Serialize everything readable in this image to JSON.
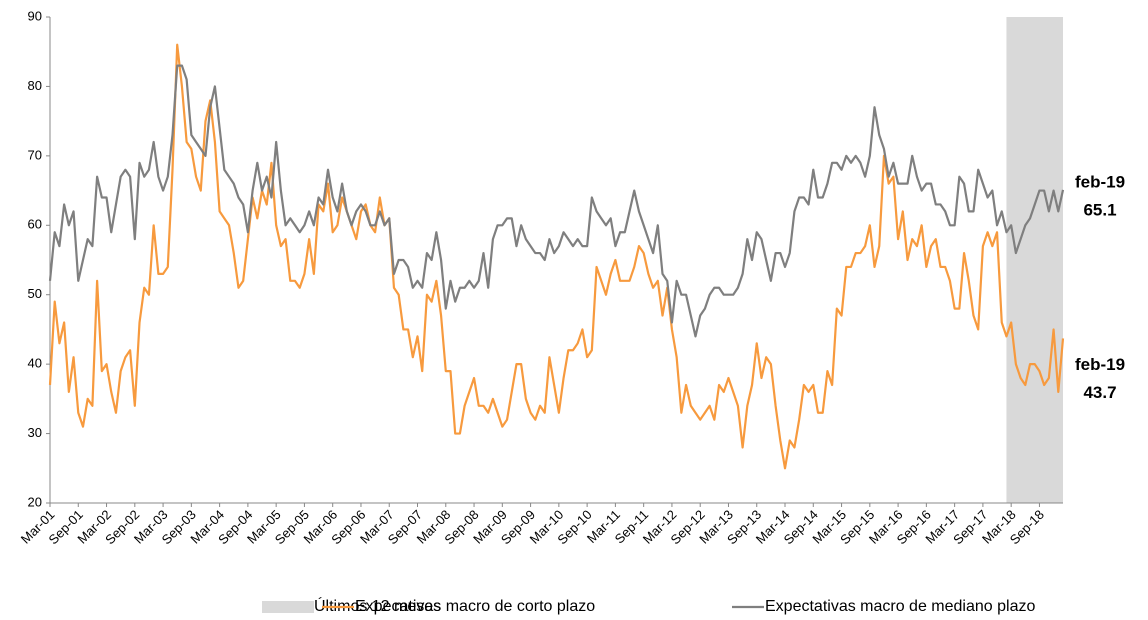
{
  "chart_data": {
    "type": "line",
    "categories": [
      "Mar-01",
      null,
      null,
      null,
      null,
      null,
      "Sep-01",
      null,
      null,
      null,
      null,
      null,
      "Mar-02",
      null,
      null,
      null,
      null,
      null,
      "Sep-02",
      null,
      null,
      null,
      null,
      null,
      "Mar-03",
      null,
      null,
      null,
      null,
      null,
      "Sep-03",
      null,
      null,
      null,
      null,
      null,
      "Mar-04",
      null,
      null,
      null,
      null,
      null,
      "Sep-04",
      null,
      null,
      null,
      null,
      null,
      "Mar-05",
      null,
      null,
      null,
      null,
      null,
      "Sep-05",
      null,
      null,
      null,
      null,
      null,
      "Mar-06",
      null,
      null,
      null,
      null,
      null,
      "Sep-06",
      null,
      null,
      null,
      null,
      null,
      "Mar-07",
      null,
      null,
      null,
      null,
      null,
      "Sep-07",
      null,
      null,
      null,
      null,
      null,
      "Mar-08",
      null,
      null,
      null,
      null,
      null,
      "Sep-08",
      null,
      null,
      null,
      null,
      null,
      "Mar-09",
      null,
      null,
      null,
      null,
      null,
      "Sep-09",
      null,
      null,
      null,
      null,
      null,
      "Mar-10",
      null,
      null,
      null,
      null,
      null,
      "Sep-10",
      null,
      null,
      null,
      null,
      null,
      "Mar-11",
      null,
      null,
      null,
      null,
      null,
      "Sep-11",
      null,
      null,
      null,
      null,
      null,
      "Mar-12",
      null,
      null,
      null,
      null,
      null,
      "Sep-12",
      null,
      null,
      null,
      null,
      null,
      "Mar-13",
      null,
      null,
      null,
      null,
      null,
      "Sep-13",
      null,
      null,
      null,
      null,
      null,
      "Mar-14",
      null,
      null,
      null,
      null,
      null,
      "Sep-14",
      null,
      null,
      null,
      null,
      null,
      "Mar-15",
      null,
      null,
      null,
      null,
      null,
      "Sep-15",
      null,
      null,
      null,
      null,
      null,
      "Mar-16",
      null,
      null,
      null,
      null,
      null,
      "Sep-16",
      null,
      null,
      null,
      null,
      null,
      "Mar-17",
      null,
      null,
      null,
      null,
      null,
      "Sep-17",
      null,
      null,
      null,
      null,
      null,
      "Mar-18",
      null,
      null,
      null,
      null,
      null,
      "Sep-18",
      null,
      null,
      null,
      null,
      null
    ],
    "series": [
      {
        "name": "Expecativas macro de corto plazo",
        "color": "#f79a3e",
        "end_label": "feb-19",
        "values": [
          37,
          49,
          43,
          46,
          36,
          41,
          33,
          31,
          35,
          34,
          52,
          39,
          40,
          36,
          33,
          39,
          41,
          42,
          34,
          46,
          51,
          50,
          60,
          53,
          53,
          54,
          68,
          86,
          80,
          72,
          71,
          67,
          65,
          75,
          78,
          72,
          62,
          61,
          60,
          56,
          51,
          52,
          58,
          64,
          61,
          65,
          63,
          69,
          60,
          57,
          58,
          52,
          52,
          51,
          53,
          58,
          53,
          63,
          62,
          66,
          59,
          60,
          64,
          62,
          60,
          58,
          62,
          63,
          60,
          59,
          64,
          60,
          61,
          51,
          50,
          45,
          45,
          41,
          44,
          39,
          50,
          49,
          52,
          47,
          39,
          39,
          30,
          30,
          34,
          36,
          38,
          34,
          34,
          33,
          35,
          33,
          31,
          32,
          36,
          40,
          40,
          35,
          33,
          32,
          34,
          33,
          41,
          37,
          33,
          38,
          42,
          42,
          43,
          45,
          41,
          42,
          54,
          52,
          50,
          53,
          55,
          52,
          52,
          52,
          54,
          57,
          56,
          53,
          51,
          52,
          47,
          51,
          45,
          41,
          33,
          37,
          34,
          33,
          32,
          33,
          34,
          32,
          37,
          36,
          38,
          36,
          34,
          28,
          34,
          37,
          43,
          38,
          41,
          40,
          34,
          29,
          25,
          29,
          28,
          32,
          37,
          36,
          37,
          33,
          33,
          39,
          37,
          48,
          47,
          54,
          54,
          56,
          56,
          57,
          60,
          54,
          57,
          70,
          66,
          67,
          58,
          62,
          55,
          58,
          57,
          60,
          54,
          57,
          58,
          54,
          54,
          52,
          48,
          48,
          56,
          52,
          47,
          45,
          57,
          59,
          57,
          59,
          46,
          44,
          46,
          40,
          38,
          37,
          40,
          40,
          39,
          37,
          38,
          45,
          36,
          43.7
        ]
      },
      {
        "name": "Expectativas macro de mediano plazo",
        "color": "#7f7f7f",
        "end_label": "feb-19",
        "values": [
          52,
          59,
          57,
          63,
          60,
          62,
          52,
          55,
          58,
          57,
          67,
          64,
          64,
          59,
          63,
          67,
          68,
          67,
          58,
          69,
          67,
          68,
          72,
          67,
          65,
          67,
          73,
          83,
          83,
          81,
          73,
          72,
          71,
          70,
          77,
          80,
          74,
          68,
          67,
          66,
          64,
          63,
          59,
          65,
          69,
          65,
          67,
          64,
          72,
          65,
          60,
          61,
          60,
          59,
          60,
          62,
          60,
          64,
          63,
          68,
          64,
          62,
          66,
          62,
          60,
          62,
          63,
          62,
          60,
          60,
          62,
          60,
          61,
          53,
          55,
          55,
          54,
          51,
          52,
          51,
          56,
          55,
          59,
          55,
          48,
          52,
          49,
          51,
          51,
          52,
          51,
          52,
          56,
          51,
          58,
          60,
          60,
          61,
          61,
          57,
          60,
          58,
          57,
          56,
          56,
          55,
          58,
          56,
          57,
          59,
          58,
          57,
          58,
          57,
          57,
          64,
          62,
          61,
          60,
          61,
          57,
          59,
          59,
          62,
          65,
          62,
          60,
          58,
          56,
          60,
          53,
          52,
          46,
          52,
          50,
          50,
          47,
          44,
          47,
          48,
          50,
          51,
          51,
          50,
          50,
          50,
          51,
          53,
          58,
          55,
          59,
          58,
          55,
          52,
          56,
          56,
          54,
          56,
          62,
          64,
          64,
          63,
          68,
          64,
          64,
          66,
          69,
          69,
          68,
          70,
          69,
          70,
          69,
          67,
          70,
          77,
          73,
          71,
          67,
          69,
          66,
          66,
          66,
          70,
          67,
          65,
          66,
          66,
          63,
          63,
          62,
          60,
          60,
          67,
          66,
          62,
          62,
          68,
          66,
          64,
          65,
          60,
          62,
          59,
          60,
          56,
          58,
          60,
          61,
          63,
          65,
          65,
          62,
          65,
          62,
          65.1
        ]
      }
    ],
    "highlight": {
      "name": "Últimos 12 meses",
      "last_n": 12,
      "color": "#d9d9d9"
    },
    "ylim": [
      20,
      90
    ],
    "yticks": [
      20,
      30,
      40,
      50,
      60,
      70,
      80,
      90
    ],
    "grid": false
  }
}
